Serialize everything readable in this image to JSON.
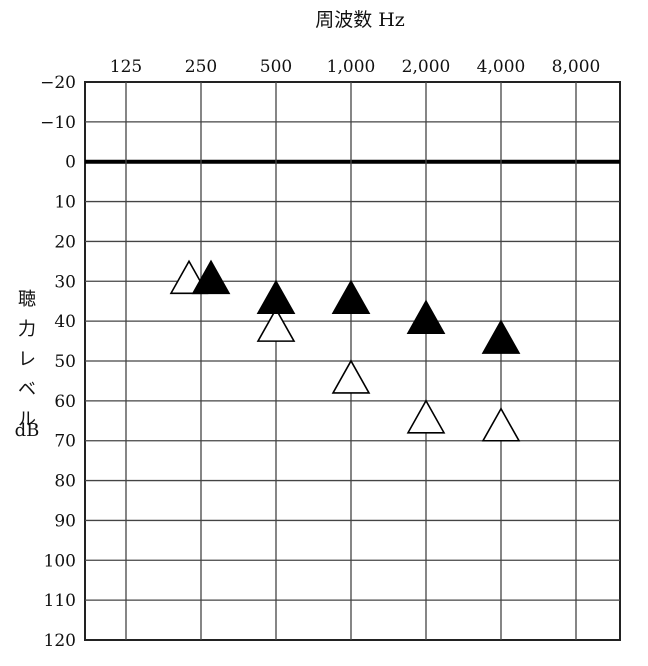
{
  "chart_data": {
    "type": "scatter",
    "title": "周波数 Hz",
    "ylabel_lines": [
      "聴",
      "力",
      "レ",
      "ベ",
      "ル",
      "dB"
    ],
    "categories": [
      "125",
      "250",
      "500",
      "1,000",
      "2,000",
      "4,000",
      "8,000"
    ],
    "y_ticks": [
      "−20",
      "−10",
      "0",
      "10",
      "20",
      "30",
      "40",
      "50",
      "60",
      "70",
      "80",
      "90",
      "100",
      "110",
      "120"
    ],
    "ylim": [
      -20,
      120
    ],
    "y_inverted": true,
    "grid": true,
    "reference_line_y": 0,
    "series": [
      {
        "marker": "filled-triangle",
        "color": "#000000",
        "points": [
          {
            "x": "250",
            "y": 30
          },
          {
            "x": "500",
            "y": 35
          },
          {
            "x": "1,000",
            "y": 35
          },
          {
            "x": "2,000",
            "y": 40
          },
          {
            "x": "4,000",
            "y": 45
          }
        ]
      },
      {
        "marker": "open-triangle",
        "color": "#000000",
        "points": [
          {
            "x": "250",
            "y": 30
          },
          {
            "x": "500",
            "y": 42
          },
          {
            "x": "1,000",
            "y": 55
          },
          {
            "x": "2,000",
            "y": 65
          },
          {
            "x": "4,000",
            "y": 67
          }
        ]
      }
    ]
  }
}
